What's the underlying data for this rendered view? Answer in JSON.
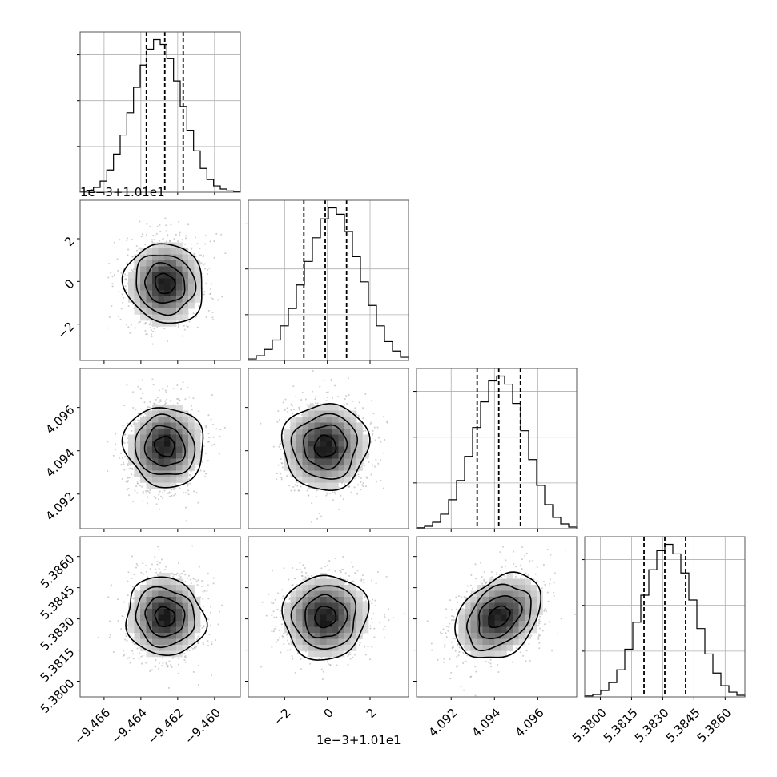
{
  "chart_data": {
    "type": "corner",
    "parameters": [
      {
        "range": [
          -9.4673,
          -9.4586
        ],
        "median": -9.4627,
        "q16": -9.4637,
        "q84": -9.4617,
        "ticks": [
          -9.466,
          -9.464,
          -9.462,
          -9.46
        ],
        "tick_labels": [
          "−9.466",
          "−9.464",
          "−9.462",
          "−9.460"
        ],
        "offset_label": ""
      },
      {
        "range": [
          -3.7,
          3.8
        ],
        "median": -0.1,
        "q16": -1.1,
        "q84": 0.9,
        "ticks": [
          -2,
          0,
          2
        ],
        "tick_labels": [
          "−2",
          "0",
          "2"
        ],
        "offset_label": "1e−3+1.01e1"
      },
      {
        "range": [
          4.0904,
          4.0978
        ],
        "median": 4.0942,
        "q16": 4.0932,
        "q84": 4.0952,
        "ticks": [
          4.092,
          4.094,
          4.096
        ],
        "tick_labels": [
          "4.092",
          "4.094",
          "4.096"
        ],
        "offset_label": ""
      },
      {
        "range": [
          5.37925,
          5.38695
        ],
        "median": 5.3831,
        "q16": 5.3821,
        "q84": 5.3841,
        "ticks": [
          5.38,
          5.3815,
          5.383,
          5.3845,
          5.386
        ],
        "tick_labels": [
          "5.3800",
          "5.3815",
          "5.3830",
          "5.3845",
          "5.3860"
        ],
        "offset_label": ""
      }
    ],
    "histograms": [
      [
        0.006,
        0.012,
        0.03,
        0.07,
        0.14,
        0.24,
        0.36,
        0.5,
        0.66,
        0.8,
        0.9,
        0.96,
        0.93,
        0.84,
        0.7,
        0.54,
        0.39,
        0.26,
        0.15,
        0.08,
        0.04,
        0.02,
        0.008,
        0.004
      ],
      [
        0.01,
        0.03,
        0.07,
        0.13,
        0.22,
        0.33,
        0.48,
        0.63,
        0.78,
        0.9,
        0.97,
        0.93,
        0.82,
        0.66,
        0.5,
        0.35,
        0.22,
        0.12,
        0.06,
        0.02
      ],
      [
        0.006,
        0.015,
        0.04,
        0.09,
        0.18,
        0.3,
        0.45,
        0.63,
        0.79,
        0.92,
        0.95,
        0.9,
        0.78,
        0.61,
        0.43,
        0.27,
        0.15,
        0.07,
        0.03,
        0.01
      ],
      [
        0.006,
        0.015,
        0.04,
        0.09,
        0.17,
        0.3,
        0.47,
        0.64,
        0.8,
        0.92,
        0.96,
        0.9,
        0.78,
        0.61,
        0.43,
        0.27,
        0.15,
        0.07,
        0.03,
        0.01
      ]
    ],
    "correlations": [
      [
        1,
        0.05,
        0.08,
        0.04
      ],
      [
        0.05,
        1,
        0.03,
        0.02
      ],
      [
        0.08,
        0.03,
        1,
        0.3
      ],
      [
        0.04,
        0.02,
        0.3,
        1
      ]
    ],
    "contour_levels_sigma": [
      0.5,
      1,
      1.5,
      2
    ],
    "quantiles": [
      0.16,
      0.5,
      0.84
    ],
    "grid": true
  }
}
